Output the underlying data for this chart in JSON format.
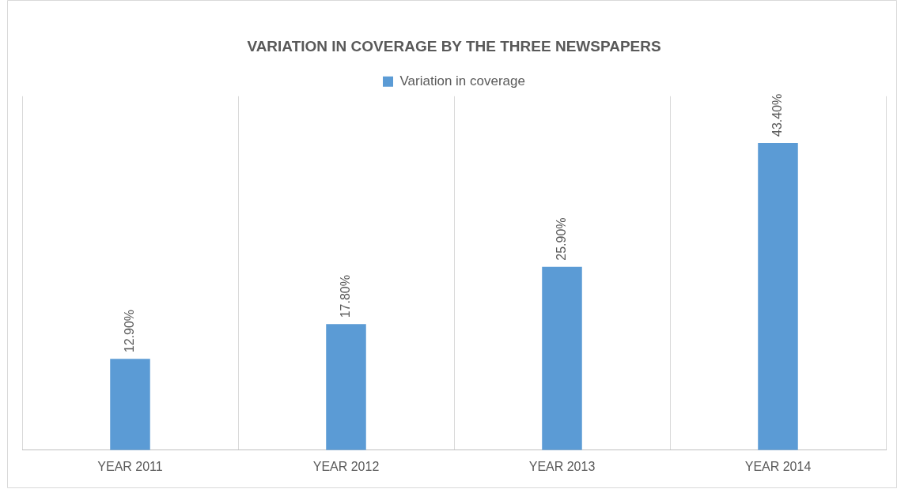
{
  "chart_data": {
    "type": "bar",
    "title": "VARIATION IN COVERAGE BY THE THREE NEWSPAPERS",
    "categories": [
      "YEAR 2011",
      "YEAR 2012",
      "YEAR 2013",
      "YEAR 2014"
    ],
    "series": [
      {
        "name": "Variation in coverage",
        "color": "#5b9bd5",
        "values": [
          12.9,
          17.8,
          25.9,
          43.4
        ],
        "value_labels": [
          "12.90%",
          "17.80%",
          "25.90%",
          "43.40%"
        ]
      }
    ],
    "tick_labels": "x",
    "grid": "x",
    "legend": "top"
  }
}
